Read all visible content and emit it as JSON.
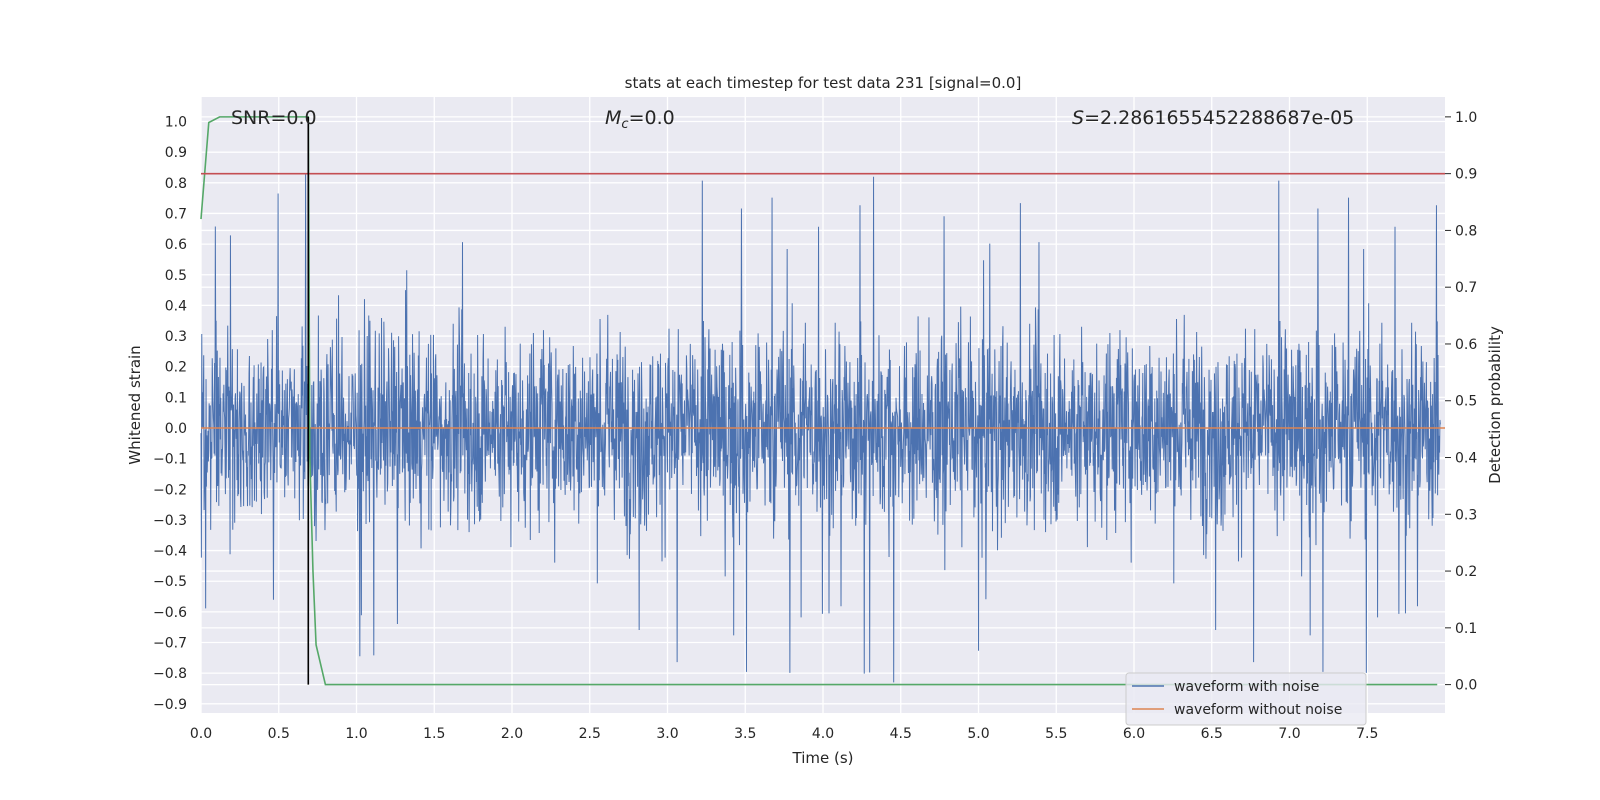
{
  "chart_data": {
    "type": "line",
    "title": "stats at each timestep for test data 231 [signal=0.0]",
    "xlabel": "Time (s)",
    "ylabel": "Whitened strain",
    "ylabel_right": "Detection probability",
    "xlim": [
      0.0,
      8.0
    ],
    "ylim": [
      -0.93,
      1.08
    ],
    "ylim_right": [
      -0.05,
      1.035
    ],
    "x_ticks": [
      0.0,
      0.5,
      1.0,
      1.5,
      2.0,
      2.5,
      3.0,
      3.5,
      4.0,
      4.5,
      5.0,
      5.5,
      6.0,
      6.5,
      7.0,
      7.5
    ],
    "x_tick_labels": [
      "0.0",
      "0.5",
      "1.0",
      "1.5",
      "2.0",
      "2.5",
      "3.0",
      "3.5",
      "4.0",
      "4.5",
      "5.0",
      "5.5",
      "6.0",
      "6.5",
      "7.0",
      "7.5"
    ],
    "y_ticks": [
      1.0,
      0.9,
      0.8,
      0.7,
      0.6,
      0.5,
      0.4,
      0.3,
      0.2,
      0.1,
      0.0,
      -0.1,
      -0.2,
      -0.3,
      -0.4,
      -0.5,
      -0.6,
      -0.7,
      -0.8,
      -0.9
    ],
    "y_tick_labels": [
      "1.0",
      "0.9",
      "0.8",
      "0.7",
      "0.6",
      "0.5",
      "0.4",
      "0.3",
      "0.2",
      "0.1",
      "0.0",
      "−0.1",
      "−0.2",
      "−0.3",
      "−0.4",
      "−0.5",
      "−0.6",
      "−0.7",
      "−0.8",
      "−0.9"
    ],
    "y_ticks_right": [
      1.0,
      0.9,
      0.8,
      0.7,
      0.6,
      0.5,
      0.4,
      0.3,
      0.2,
      0.1,
      0.0
    ],
    "y_tick_labels_right": [
      "1.0",
      "0.9",
      "0.8",
      "0.7",
      "0.6",
      "0.5",
      "0.4",
      "0.3",
      "0.2",
      "0.1",
      "0.0"
    ],
    "grid": true,
    "legend_position": "lower-right",
    "annotations": {
      "snr": "SNR=0.0",
      "mc_symbol": "M",
      "mc_sub": "c",
      "mc_value": "=0.0",
      "s_symbol": "S",
      "s_value": "=2.2861655452288687e-05"
    },
    "series": [
      {
        "name": "waveform with noise",
        "color": "#4c72b0",
        "axis": "left",
        "style": "dense noise, amplitude mostly within ±0.45, peaks to about 1.0"
      },
      {
        "name": "waveform without noise",
        "color": "#dd8452",
        "axis": "left",
        "x": [
          0.0,
          8.0
        ],
        "y": [
          0.0,
          0.0
        ]
      },
      {
        "color": "#55a868",
        "axis": "right",
        "x": [
          0.0,
          0.05,
          0.12,
          0.2,
          0.3,
          0.4,
          0.5,
          0.6,
          0.69,
          0.7,
          0.72,
          0.74,
          0.8,
          1.0,
          2.0,
          3.0,
          4.0,
          5.0,
          6.0,
          7.0,
          7.95
        ],
        "y": [
          0.82,
          0.99,
          1.0,
          1.0,
          1.0,
          1.0,
          1.0,
          1.0,
          1.0,
          0.4,
          0.2,
          0.07,
          0.0,
          0.0,
          0.0,
          0.0,
          0.0,
          0.0,
          0.0,
          0.0,
          0.0
        ]
      },
      {
        "color": "#c44e52",
        "axis": "right",
        "x": [
          0.0,
          8.0
        ],
        "y": [
          0.9,
          0.9
        ]
      },
      {
        "color": "#000000",
        "axis": "right",
        "x": [
          0.69,
          0.69
        ],
        "y": [
          0.0,
          1.0
        ]
      }
    ]
  }
}
